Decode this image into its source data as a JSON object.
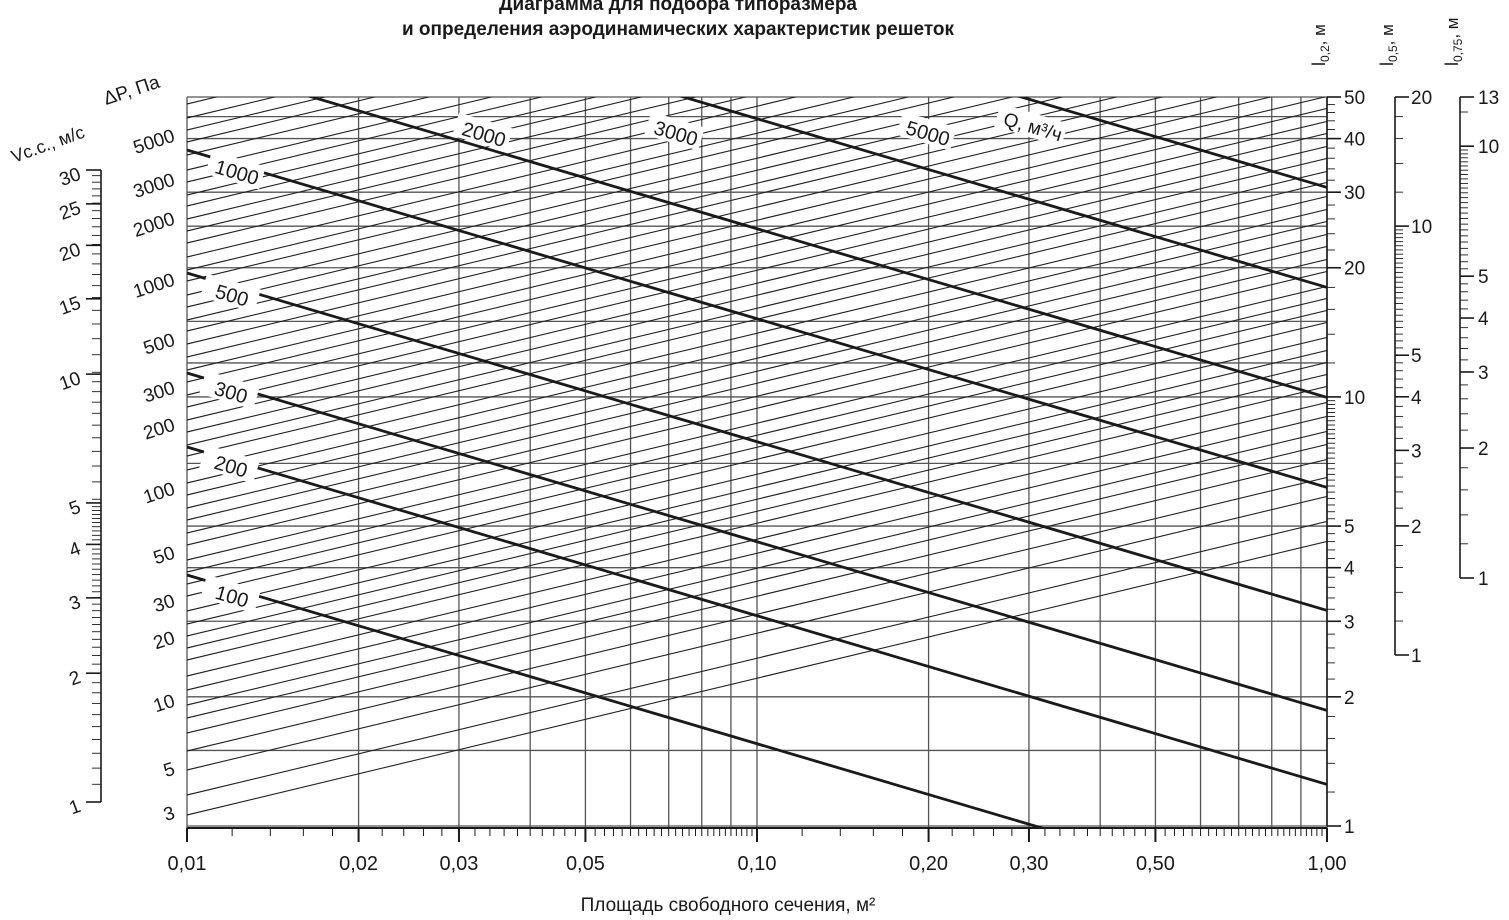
{
  "chart_data": {
    "type": "line",
    "title": "Диаграмма для подбора типоразмера",
    "subtitle": "и определения аэродинамических характеристик решеток",
    "xlabel": "Площадь свободного сечения, м²",
    "x_scale": "log",
    "xlim": [
      0.01,
      1.0
    ],
    "x_tick_labels": [
      "0,01",
      "0,02",
      "0,03",
      "0,05",
      "0,10",
      "0,20",
      "0,30",
      "0,50",
      "1,00"
    ],
    "x_ticks": [
      0.01,
      0.02,
      0.03,
      0.05,
      0.1,
      0.2,
      0.3,
      0.5,
      1.0
    ],
    "vcc_axis": {
      "label": "Vс.с., м/с",
      "scale": "log",
      "range": [
        1,
        30
      ],
      "ticks": [
        1,
        2,
        3,
        4,
        5,
        10,
        15,
        20,
        25,
        30
      ],
      "tick_labels": [
        "1",
        "2",
        "3",
        "4",
        "5",
        "10",
        "15",
        "20",
        "25",
        "30"
      ]
    },
    "dp_axis": {
      "label": "ΔP, Па",
      "ticks": [
        3,
        5,
        10,
        20,
        30,
        50,
        100,
        200,
        300,
        500,
        1000,
        2000,
        3000,
        5000
      ],
      "tick_labels": [
        "3",
        "5",
        "10",
        "20",
        "30",
        "50",
        "100",
        "200",
        "300",
        "500",
        "1000",
        "2000",
        "3000",
        "5000"
      ]
    },
    "flow_lines": {
      "label": "Q, м³/ч",
      "description_values": [
        100,
        200,
        300,
        500,
        1000,
        2000,
        3000,
        5000
      ],
      "labels": [
        "100",
        "200",
        "300",
        "500",
        "1000",
        "2000",
        "3000",
        "5000"
      ]
    },
    "throw_axes": [
      {
        "label": "l0,2, м",
        "sub": "0,2",
        "range": [
          1,
          50
        ],
        "tick_labels": [
          "1",
          "2",
          "3",
          "4",
          "5",
          "10",
          "20",
          "30",
          "40",
          "50"
        ],
        "ticks": [
          1,
          2,
          3,
          4,
          5,
          10,
          20,
          30,
          40,
          50
        ]
      },
      {
        "label": "l0,5, м",
        "sub": "0,5",
        "range": [
          1,
          20
        ],
        "tick_labels": [
          "1",
          "2",
          "3",
          "4",
          "5",
          "10",
          "20"
        ],
        "ticks": [
          1,
          2,
          3,
          4,
          5,
          10,
          20
        ]
      },
      {
        "label": "l0,75, м",
        "sub": "0,75",
        "range": [
          1,
          13
        ],
        "tick_labels": [
          "1",
          "2",
          "3",
          "4",
          "5",
          "10",
          "13"
        ],
        "ticks": [
          1,
          2,
          3,
          4,
          5,
          10,
          13
        ]
      }
    ]
  }
}
